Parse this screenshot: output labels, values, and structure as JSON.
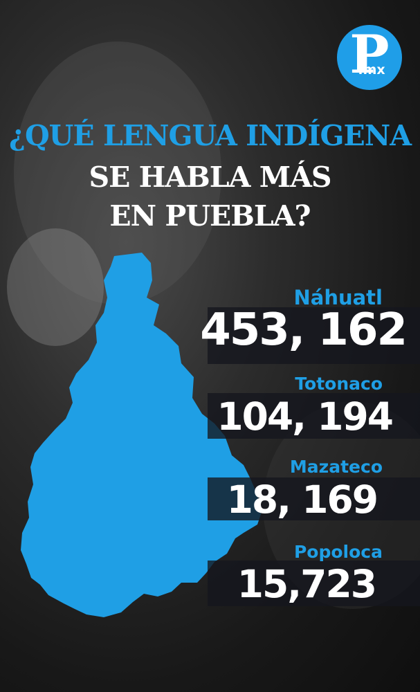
{
  "brand": {
    "logo_letter": "P",
    "logo_suffix": ".mx"
  },
  "title": {
    "line1": "¿QUÉ LENGUA INDÍGENA",
    "line2": "SE HABLA MÁS",
    "line3": "EN PUEBLA?"
  },
  "languages": [
    {
      "name": "Náhuatl",
      "speakers": "453, 162"
    },
    {
      "name": "Totonaco",
      "speakers": "104, 194"
    },
    {
      "name": "Mazateco",
      "speakers": "18, 169"
    },
    {
      "name": "Popoloca",
      "speakers": "15,723"
    }
  ],
  "colors": {
    "accent": "#1f9fe5",
    "logo_bg": "#1f9ee8",
    "text": "#ffffff"
  },
  "icons": {
    "map": "puebla-map-icon",
    "logo": "p-mx-logo-icon"
  }
}
